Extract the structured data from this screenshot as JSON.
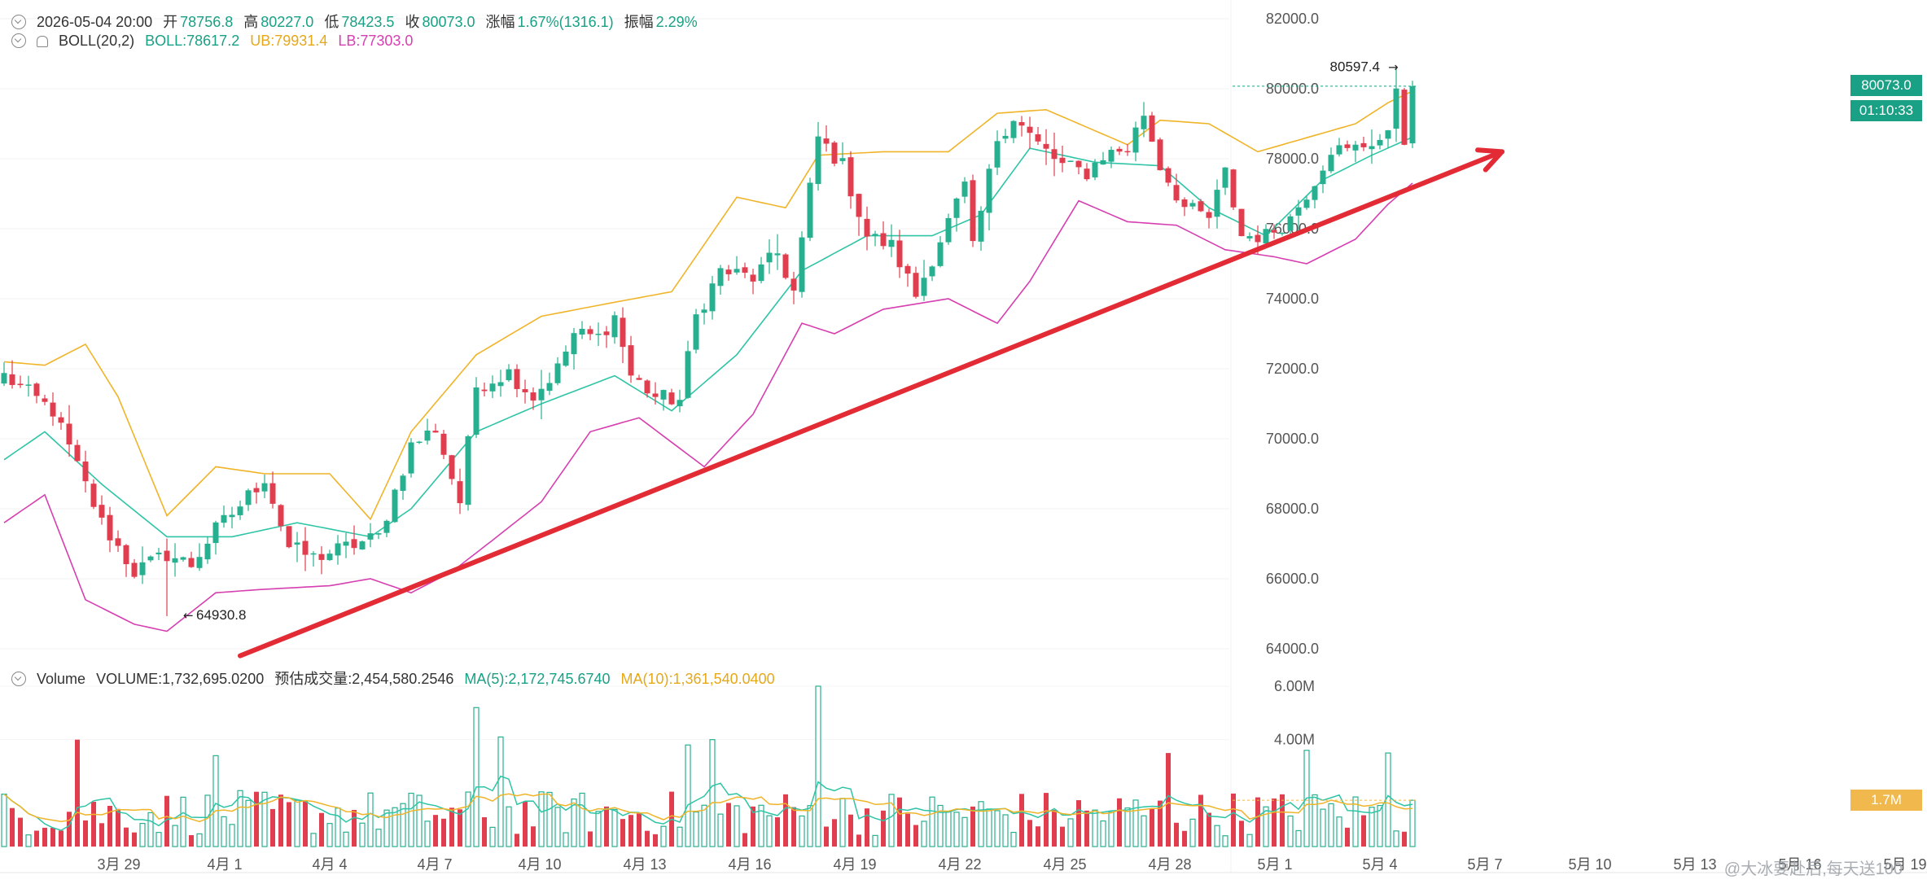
{
  "header": {
    "datetime": "2026-05-04 20:00",
    "open_label": "开",
    "open": "78756.8",
    "high_label": "高",
    "high": "80227.0",
    "low_label": "低",
    "low": "78423.5",
    "close_label": "收",
    "close": "80073.0",
    "change_label": "涨幅",
    "change": "1.67%(1316.1)",
    "amplitude_label": "振幅",
    "amplitude": "2.29%"
  },
  "boll": {
    "name": "BOLL(20,2)",
    "mid": "BOLL:78617.2",
    "ub": "UB:79931.4",
    "lb": "LB:77303.0"
  },
  "volume_header": {
    "name": "Volume",
    "volume": "VOLUME:1,732,695.0200",
    "estimated": "预估成交量:2,454,580.2546",
    "ma5": "MA(5):2,172,745.6740",
    "ma10": "MA(10):1,361,540.0400"
  },
  "price_tags": {
    "last_price": "80073.0",
    "countdown": "01:10:33",
    "volume_current": "1.7M"
  },
  "annotations": {
    "high_marker": "80597.4",
    "low_marker": "64930.8"
  },
  "watermark": "@大冰要赴后,每天送100",
  "colors": {
    "up": "#26b08f",
    "down": "#e03e4e",
    "boll_mid": "#2ec4a6",
    "boll_ub": "#f0b429",
    "boll_lb": "#d63fb0",
    "trendline": "#e32b35",
    "price_tag": "#1aa085",
    "volume_tag": "#f0b84d"
  },
  "chart_data": {
    "type": "candlestick",
    "interval": "4h",
    "y_axis": {
      "ticks": [
        "82000.0",
        "80000.0",
        "78000.0",
        "76000.0",
        "74000.0",
        "72000.0",
        "70000.0",
        "68000.0",
        "66000.0",
        "64000.0"
      ],
      "range": [
        63500,
        82500
      ]
    },
    "volume_axis": {
      "ticks": [
        "6.00M",
        "4.00M"
      ],
      "range": [
        0,
        6500000
      ]
    },
    "x_axis": {
      "tick_labels": [
        "3月 29",
        "4月 1",
        "4月 4",
        "4月 7",
        "4月 10",
        "4月 13",
        "4月 16",
        "4月 19",
        "4月 22",
        "4月 25",
        "4月 28",
        "5月 1",
        "5月 4",
        "5月 7",
        "5月 10",
        "5月 13",
        "5月 16",
        "5月 19"
      ]
    },
    "close_path": [
      [
        0,
        71800
      ],
      [
        6,
        70800
      ],
      [
        12,
        67600
      ],
      [
        16,
        66200
      ],
      [
        20,
        66700
      ],
      [
        23,
        66400
      ],
      [
        26,
        67400
      ],
      [
        29,
        68100
      ],
      [
        32,
        68900
      ],
      [
        35,
        66900
      ],
      [
        38,
        66600
      ],
      [
        42,
        66900
      ],
      [
        46,
        67200
      ],
      [
        50,
        69800
      ],
      [
        53,
        70300
      ],
      [
        56,
        68200
      ],
      [
        58,
        71500
      ],
      [
        62,
        71900
      ],
      [
        65,
        71200
      ],
      [
        68,
        72000
      ],
      [
        70,
        73000
      ],
      [
        73,
        72900
      ],
      [
        75,
        73500
      ],
      [
        77,
        71800
      ],
      [
        80,
        71200
      ],
      [
        83,
        71100
      ],
      [
        85,
        73500
      ],
      [
        88,
        74800
      ],
      [
        92,
        74600
      ],
      [
        95,
        75300
      ],
      [
        97,
        74200
      ],
      [
        100,
        78600
      ],
      [
        103,
        77800
      ],
      [
        106,
        75800
      ],
      [
        109,
        75500
      ],
      [
        112,
        74100
      ],
      [
        115,
        75700
      ],
      [
        118,
        77200
      ],
      [
        119,
        75400
      ],
      [
        122,
        78600
      ],
      [
        124,
        79200
      ],
      [
        127,
        78400
      ],
      [
        130,
        77800
      ],
      [
        133,
        77600
      ],
      [
        135,
        78100
      ],
      [
        138,
        78300
      ],
      [
        140,
        79300
      ],
      [
        142,
        77800
      ],
      [
        145,
        76600
      ],
      [
        148,
        76300
      ],
      [
        150,
        77600
      ],
      [
        152,
        75800
      ],
      [
        155,
        75800
      ],
      [
        158,
        76300
      ],
      [
        161,
        77400
      ],
      [
        163,
        78300
      ],
      [
        165,
        78200
      ],
      [
        168,
        78500
      ],
      [
        170,
        78600
      ],
      [
        171,
        80100
      ],
      [
        172,
        78600
      ],
      [
        173,
        80073
      ]
    ],
    "bollinger": {
      "mid": [
        [
          0,
          69400
        ],
        [
          5,
          70200
        ],
        [
          12,
          68700
        ],
        [
          20,
          67200
        ],
        [
          28,
          67200
        ],
        [
          36,
          67600
        ],
        [
          45,
          67200
        ],
        [
          50,
          68000
        ],
        [
          58,
          70200
        ],
        [
          66,
          71000
        ],
        [
          75,
          71800
        ],
        [
          82,
          70800
        ],
        [
          90,
          72400
        ],
        [
          98,
          74800
        ],
        [
          106,
          75800
        ],
        [
          114,
          75800
        ],
        [
          120,
          76400
        ],
        [
          126,
          78300
        ],
        [
          134,
          77900
        ],
        [
          142,
          77800
        ],
        [
          148,
          76600
        ],
        [
          155,
          75800
        ],
        [
          162,
          77400
        ],
        [
          168,
          78100
        ],
        [
          173,
          78617.2
        ]
      ],
      "ub": [
        [
          0,
          72200
        ],
        [
          5,
          72100
        ],
        [
          10,
          72700
        ],
        [
          14,
          71200
        ],
        [
          20,
          67800
        ],
        [
          26,
          69200
        ],
        [
          32,
          69000
        ],
        [
          40,
          69000
        ],
        [
          45,
          67700
        ],
        [
          50,
          70200
        ],
        [
          58,
          72400
        ],
        [
          66,
          73500
        ],
        [
          75,
          73900
        ],
        [
          82,
          74200
        ],
        [
          90,
          76900
        ],
        [
          96,
          76600
        ],
        [
          100,
          78100
        ],
        [
          108,
          78200
        ],
        [
          116,
          78200
        ],
        [
          122,
          79300
        ],
        [
          128,
          79400
        ],
        [
          134,
          78800
        ],
        [
          138,
          78400
        ],
        [
          142,
          79100
        ],
        [
          148,
          79000
        ],
        [
          154,
          78200
        ],
        [
          160,
          78600
        ],
        [
          166,
          79000
        ],
        [
          170,
          79600
        ],
        [
          173,
          79931.4
        ]
      ],
      "lb": [
        [
          0,
          67600
        ],
        [
          5,
          68400
        ],
        [
          10,
          65400
        ],
        [
          16,
          64700
        ],
        [
          20,
          64500
        ],
        [
          26,
          65600
        ],
        [
          32,
          65700
        ],
        [
          40,
          65800
        ],
        [
          45,
          66000
        ],
        [
          50,
          65600
        ],
        [
          55,
          66200
        ],
        [
          60,
          67100
        ],
        [
          66,
          68200
        ],
        [
          72,
          70200
        ],
        [
          78,
          70600
        ],
        [
          86,
          69200
        ],
        [
          92,
          70700
        ],
        [
          98,
          73300
        ],
        [
          102,
          73000
        ],
        [
          108,
          73700
        ],
        [
          116,
          74000
        ],
        [
          122,
          73300
        ],
        [
          126,
          74500
        ],
        [
          132,
          76800
        ],
        [
          138,
          76200
        ],
        [
          144,
          76100
        ],
        [
          150,
          75400
        ],
        [
          156,
          75200
        ],
        [
          160,
          75000
        ],
        [
          166,
          75700
        ],
        [
          170,
          76700
        ],
        [
          173,
          77303.0
        ]
      ]
    },
    "extremes": {
      "high": 80597.4,
      "high_index": 171,
      "low": 64930.8,
      "low_index": 20
    },
    "trendline": {
      "start": [
        29,
        63800
      ],
      "end": [
        184,
        78200
      ]
    },
    "volume": {
      "spikes": [
        [
          9,
          4000000
        ],
        [
          58,
          5200000
        ],
        [
          61,
          4100000
        ],
        [
          100,
          6000000
        ],
        [
          87,
          4000000
        ],
        [
          143,
          3500000
        ],
        [
          160,
          3600000
        ],
        [
          170,
          3500000
        ],
        [
          26,
          3400000
        ],
        [
          84,
          3800000
        ]
      ],
      "last": 1732695.02,
      "ma5_last": 2172745.674,
      "ma10_last": 1361540.04
    }
  }
}
